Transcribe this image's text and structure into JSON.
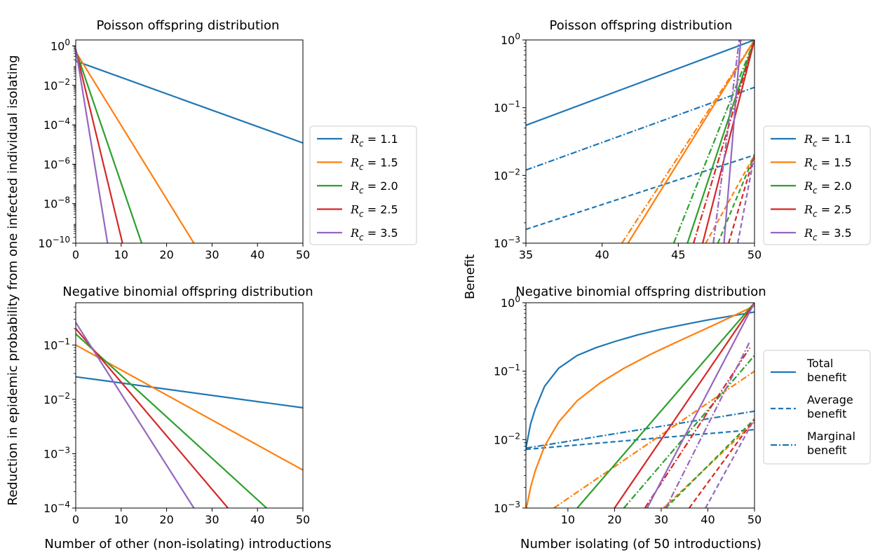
{
  "figure": {
    "ylabel_left": "Reduction in epidemic probability from one infected individual isolating",
    "ylabel_right": "Benefit",
    "xlabel_left": "Number of other (non-isolating) introductions",
    "xlabel_right": "Number isolating (of 50 introductions)"
  },
  "colors": {
    "blue": "#1f77b4",
    "orange": "#ff7f0e",
    "green": "#2ca02c",
    "red": "#d62728",
    "purple": "#9467bd"
  },
  "legend_rc": {
    "entries": [
      {
        "label": "R_c = 1.1",
        "color": "#1f77b4"
      },
      {
        "label": "R_c = 1.5",
        "color": "#ff7f0e"
      },
      {
        "label": "R_c = 2.0",
        "color": "#2ca02c"
      },
      {
        "label": "R_c = 2.5",
        "color": "#d62728"
      },
      {
        "label": "R_c = 3.5",
        "color": "#9467bd"
      }
    ]
  },
  "legend_style": {
    "entries": [
      {
        "line1": "Total",
        "line2": "benefit",
        "dash": "solid"
      },
      {
        "line1": "Average",
        "line2": "benefit",
        "dash": "dashed"
      },
      {
        "line1": "Marginal",
        "line2": "benefit",
        "dash": "dashdot"
      }
    ]
  },
  "chart_data": [
    {
      "type": "line",
      "title": "Poisson offspring distribution",
      "xlim": [
        0,
        50
      ],
      "ylim": [
        1e-10,
        2
      ],
      "yscale": "log",
      "xticks": [
        0,
        10,
        20,
        30,
        40,
        50
      ],
      "yticks": [
        1,
        0.01,
        0.0001,
        1e-06,
        1e-08,
        1e-10
      ],
      "ytick_labels": [
        "10^0",
        "10^-2",
        "10^-4",
        "10^-6",
        "10^-8",
        "10^-10"
      ],
      "series": [
        {
          "name": "R_c = 1.1",
          "color": "#1f77b4",
          "x": [
            0,
            50
          ],
          "y": [
            0.17,
            1.2e-05
          ]
        },
        {
          "name": "R_c = 1.5",
          "color": "#ff7f0e",
          "x": [
            0,
            26
          ],
          "y": [
            0.5,
            1e-10
          ]
        },
        {
          "name": "R_c = 2.0",
          "color": "#2ca02c",
          "x": [
            0,
            14.5
          ],
          "y": [
            0.6,
            1e-10
          ]
        },
        {
          "name": "R_c = 2.5",
          "color": "#d62728",
          "x": [
            0,
            10.3
          ],
          "y": [
            0.65,
            1e-10
          ]
        },
        {
          "name": "R_c = 3.5",
          "color": "#9467bd",
          "x": [
            0,
            7
          ],
          "y": [
            0.7,
            1e-10
          ]
        }
      ]
    },
    {
      "type": "line",
      "title": "Negative binomial offspring distribution",
      "xlim": [
        0,
        50
      ],
      "ylim": [
        0.0001,
        0.6
      ],
      "yscale": "log",
      "xticks": [
        0,
        10,
        20,
        30,
        40,
        50
      ],
      "yticks": [
        0.1,
        0.01,
        0.001,
        0.0001
      ],
      "ytick_labels": [
        "10^-1",
        "10^-2",
        "10^-3",
        "10^-4"
      ],
      "series": [
        {
          "name": "R_c = 1.1",
          "color": "#1f77b4",
          "x": [
            0,
            50
          ],
          "y": [
            0.026,
            0.007
          ]
        },
        {
          "name": "R_c = 1.5",
          "color": "#ff7f0e",
          "x": [
            0,
            50
          ],
          "y": [
            0.1,
            0.0005
          ]
        },
        {
          "name": "R_c = 2.0",
          "color": "#2ca02c",
          "x": [
            0,
            42
          ],
          "y": [
            0.16,
            0.0001
          ]
        },
        {
          "name": "R_c = 2.5",
          "color": "#d62728",
          "x": [
            0,
            33.5
          ],
          "y": [
            0.2,
            0.0001
          ]
        },
        {
          "name": "R_c = 3.5",
          "color": "#9467bd",
          "x": [
            0,
            26
          ],
          "y": [
            0.26,
            0.0001
          ]
        }
      ]
    },
    {
      "type": "line",
      "title": "Poisson offspring distribution",
      "xlim": [
        35,
        50
      ],
      "ylim": [
        0.001,
        1
      ],
      "yscale": "log",
      "xticks": [
        35,
        40,
        45,
        50
      ],
      "yticks": [
        1,
        0.1,
        0.01,
        0.001
      ],
      "ytick_labels": [
        "10^0",
        "10^-1",
        "10^-2",
        "10^-3"
      ],
      "series": [
        {
          "name": "R_c = 1.1 total",
          "color": "#1f77b4",
          "dash": "solid",
          "x": [
            35,
            50
          ],
          "y": [
            0.055,
            1
          ]
        },
        {
          "name": "R_c = 1.1 marginal",
          "color": "#1f77b4",
          "dash": "dashdot",
          "x": [
            35,
            50
          ],
          "y": [
            0.012,
            0.2
          ]
        },
        {
          "name": "R_c = 1.1 average",
          "color": "#1f77b4",
          "dash": "dashed",
          "x": [
            35,
            50
          ],
          "y": [
            0.0016,
            0.02
          ]
        },
        {
          "name": "R_c = 1.5 total",
          "color": "#ff7f0e",
          "dash": "solid",
          "x": [
            41.7,
            50
          ],
          "y": [
            0.001,
            1
          ]
        },
        {
          "name": "R_c = 1.5 marginal",
          "color": "#ff7f0e",
          "dash": "dashdot",
          "x": [
            41.3,
            50
          ],
          "y": [
            0.001,
            1
          ]
        },
        {
          "name": "R_c = 1.5 average",
          "color": "#ff7f0e",
          "dash": "dashed",
          "x": [
            46.8,
            50
          ],
          "y": [
            0.001,
            0.02
          ]
        },
        {
          "name": "R_c = 2.0 total",
          "color": "#2ca02c",
          "dash": "solid",
          "x": [
            45.6,
            50
          ],
          "y": [
            0.001,
            1
          ]
        },
        {
          "name": "R_c = 2.0 marginal",
          "color": "#2ca02c",
          "dash": "dashdot",
          "x": [
            44.7,
            50
          ],
          "y": [
            0.001,
            1
          ]
        },
        {
          "name": "R_c = 2.0 average",
          "color": "#2ca02c",
          "dash": "dashed",
          "x": [
            47.6,
            50
          ],
          "y": [
            0.001,
            0.02
          ]
        },
        {
          "name": "R_c = 2.5 total",
          "color": "#d62728",
          "dash": "solid",
          "x": [
            46.6,
            50
          ],
          "y": [
            0.001,
            1
          ]
        },
        {
          "name": "R_c = 2.5 marginal",
          "color": "#d62728",
          "dash": "dashdot",
          "x": [
            46.0,
            50
          ],
          "y": [
            0.001,
            1
          ]
        },
        {
          "name": "R_c = 2.5 average",
          "color": "#d62728",
          "dash": "dashed",
          "x": [
            48.3,
            50
          ],
          "y": [
            0.001,
            0.02
          ]
        },
        {
          "name": "R_c = 3.5 total",
          "color": "#9467bd",
          "dash": "solid",
          "x": [
            48.0,
            49.1
          ],
          "y": [
            0.001,
            1
          ]
        },
        {
          "name": "R_c = 3.5 marginal",
          "color": "#9467bd",
          "dash": "dashdot",
          "x": [
            47.3,
            49.0
          ],
          "y": [
            0.001,
            1
          ]
        },
        {
          "name": "R_c = 3.5 average",
          "color": "#9467bd",
          "dash": "dashed",
          "x": [
            48.9,
            50
          ],
          "y": [
            0.001,
            0.02
          ]
        }
      ]
    },
    {
      "type": "line",
      "title": "Negative binomial offspring distribution",
      "xlim": [
        1,
        50
      ],
      "ylim": [
        0.001,
        1
      ],
      "yscale": "log",
      "xticks": [
        10,
        20,
        30,
        40,
        50
      ],
      "yticks": [
        1,
        0.1,
        0.01,
        0.001
      ],
      "ytick_labels": [
        "10^0",
        "10^-1",
        "10^-2",
        "10^-3"
      ],
      "series": [
        {
          "name": "R_c = 1.1 total",
          "color": "#1f77b4",
          "dash": "solid",
          "x": [
            1,
            2,
            3,
            5,
            8,
            12,
            16,
            20,
            25,
            30,
            35,
            40,
            45,
            50
          ],
          "y": [
            0.0075,
            0.017,
            0.028,
            0.06,
            0.11,
            0.17,
            0.22,
            0.27,
            0.34,
            0.41,
            0.48,
            0.56,
            0.64,
            0.73
          ]
        },
        {
          "name": "R_c = 1.1 average",
          "color": "#1f77b4",
          "dash": "dashed",
          "x": [
            1,
            50
          ],
          "y": [
            0.0072,
            0.014
          ]
        },
        {
          "name": "R_c = 1.1 marginal",
          "color": "#1f77b4",
          "dash": "dashdot",
          "x": [
            1,
            50
          ],
          "y": [
            0.0075,
            0.026
          ]
        },
        {
          "name": "R_c = 1.5 total",
          "color": "#ff7f0e",
          "dash": "solid",
          "x": [
            1.1,
            2,
            3,
            5,
            8,
            12,
            17,
            22,
            28,
            34,
            40,
            45,
            50
          ],
          "y": [
            0.001,
            0.002,
            0.0035,
            0.008,
            0.018,
            0.037,
            0.068,
            0.11,
            0.18,
            0.28,
            0.43,
            0.62,
            0.9
          ]
        },
        {
          "name": "R_c = 1.5 average",
          "color": "#ff7f0e",
          "dash": "dashed",
          "x": [
            30.5,
            50
          ],
          "y": [
            0.001,
            0.018
          ]
        },
        {
          "name": "R_c = 1.5 marginal",
          "color": "#ff7f0e",
          "dash": "dashdot",
          "x": [
            7,
            50
          ],
          "y": [
            0.001,
            0.1
          ]
        },
        {
          "name": "R_c = 2.0 total",
          "color": "#2ca02c",
          "dash": "solid",
          "x": [
            12,
            50
          ],
          "y": [
            0.001,
            1
          ]
        },
        {
          "name": "R_c = 2.0 average",
          "color": "#2ca02c",
          "dash": "dashed",
          "x": [
            31,
            50
          ],
          "y": [
            0.001,
            0.02
          ]
        },
        {
          "name": "R_c = 2.0 marginal",
          "color": "#2ca02c",
          "dash": "dashdot",
          "x": [
            22,
            50
          ],
          "y": [
            0.001,
            0.17
          ]
        },
        {
          "name": "R_c = 2.5 total",
          "color": "#d62728",
          "dash": "solid",
          "x": [
            20,
            50
          ],
          "y": [
            0.001,
            1
          ]
        },
        {
          "name": "R_c = 2.5 average",
          "color": "#d62728",
          "dash": "dashed",
          "x": [
            36,
            50
          ],
          "y": [
            0.001,
            0.02
          ]
        },
        {
          "name": "R_c = 2.5 marginal",
          "color": "#d62728",
          "dash": "dashdot",
          "x": [
            26.5,
            49
          ],
          "y": [
            0.001,
            0.22
          ]
        },
        {
          "name": "R_c = 3.5 total",
          "color": "#9467bd",
          "dash": "solid",
          "x": [
            27,
            50
          ],
          "y": [
            0.001,
            1
          ]
        },
        {
          "name": "R_c = 3.5 average",
          "color": "#9467bd",
          "dash": "dashed",
          "x": [
            39.5,
            50
          ],
          "y": [
            0.001,
            0.02
          ]
        },
        {
          "name": "R_c = 3.5 marginal",
          "color": "#9467bd",
          "dash": "dashdot",
          "x": [
            31,
            49
          ],
          "y": [
            0.001,
            0.27
          ]
        }
      ]
    }
  ]
}
